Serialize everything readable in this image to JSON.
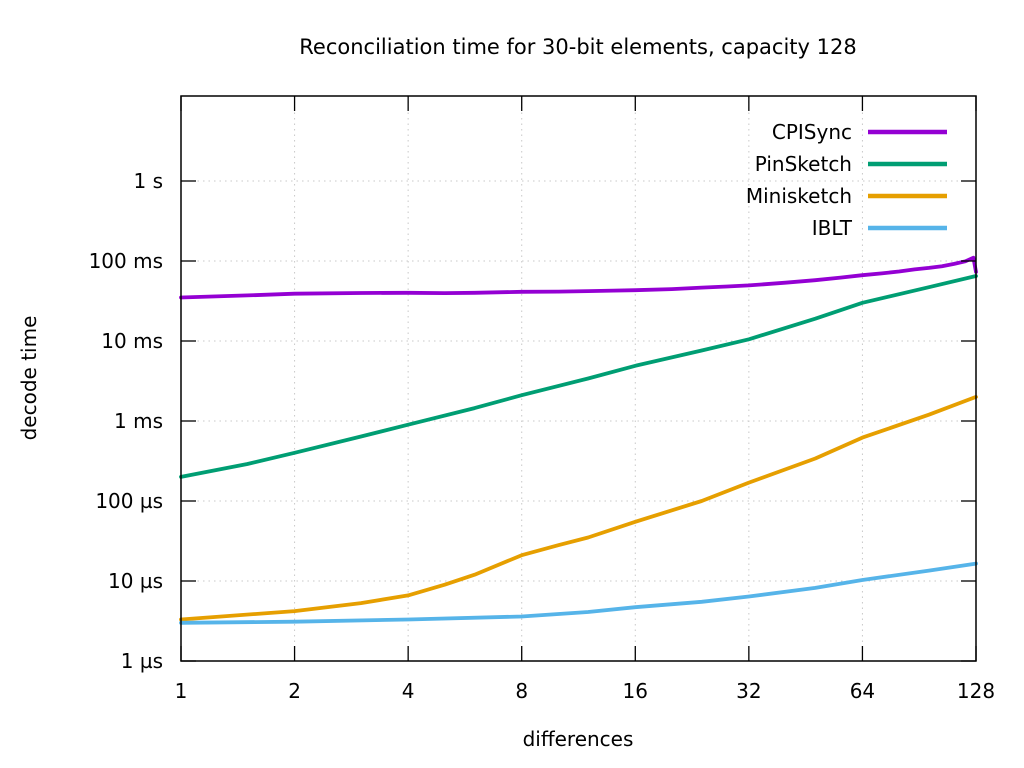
{
  "title": "Reconciliation time for 30-bit elements, capacity 128",
  "chart_data": {
    "type": "line",
    "title": "Reconciliation time for 30-bit elements, capacity 128",
    "xlabel": "differences",
    "ylabel": "decode time",
    "x_scale": "log2",
    "y_scale": "log10",
    "x_range": [
      1,
      128
    ],
    "y_range_label": [
      "1 µs",
      "above 1 s"
    ],
    "grid": true,
    "legend_position": "top-right-inside",
    "x_ticks": [
      {
        "v": 1,
        "label": "1"
      },
      {
        "v": 2,
        "label": "2"
      },
      {
        "v": 4,
        "label": "4"
      },
      {
        "v": 8,
        "label": "8"
      },
      {
        "v": 16,
        "label": "16"
      },
      {
        "v": 32,
        "label": "32"
      },
      {
        "v": 64,
        "label": "64"
      },
      {
        "v": 128,
        "label": "128"
      }
    ],
    "y_ticks": [
      {
        "us": 1,
        "label": "1 µs"
      },
      {
        "us": 10,
        "label": "10 µs"
      },
      {
        "us": 100,
        "label": "100 µs"
      },
      {
        "us": 1000,
        "label": "1 ms"
      },
      {
        "us": 10000,
        "label": "10 ms"
      },
      {
        "us": 100000,
        "label": "100 ms"
      },
      {
        "us": 1000000,
        "label": "1 s"
      }
    ],
    "series": [
      {
        "name": "CPISync",
        "color": "#9400d3",
        "units": "microseconds",
        "points": [
          [
            1,
            35000
          ],
          [
            1.5,
            37200
          ],
          [
            2,
            39000
          ],
          [
            3,
            39800
          ],
          [
            4,
            40000
          ],
          [
            5,
            39700
          ],
          [
            6,
            40000
          ],
          [
            8,
            41200
          ],
          [
            10,
            41500
          ],
          [
            12,
            42000
          ],
          [
            14,
            42600
          ],
          [
            16,
            43200
          ],
          [
            20,
            44600
          ],
          [
            24,
            46500
          ],
          [
            28,
            48000
          ],
          [
            32,
            49500
          ],
          [
            40,
            53500
          ],
          [
            48,
            57500
          ],
          [
            56,
            62000
          ],
          [
            64,
            66500
          ],
          [
            72,
            70000
          ],
          [
            80,
            74000
          ],
          [
            88,
            78500
          ],
          [
            96,
            82000
          ],
          [
            104,
            86000
          ],
          [
            112,
            92000
          ],
          [
            120,
            99000
          ],
          [
            126,
            110000
          ],
          [
            128,
            73000
          ]
        ]
      },
      {
        "name": "PinSketch",
        "color": "#009e73",
        "units": "microseconds",
        "points": [
          [
            1,
            200
          ],
          [
            1.5,
            290
          ],
          [
            2,
            400
          ],
          [
            3,
            640
          ],
          [
            4,
            900
          ],
          [
            6,
            1450
          ],
          [
            8,
            2100
          ],
          [
            12,
            3400
          ],
          [
            16,
            4900
          ],
          [
            24,
            7600
          ],
          [
            32,
            10500
          ],
          [
            48,
            19000
          ],
          [
            64,
            30000
          ],
          [
            96,
            47000
          ],
          [
            128,
            65000
          ]
        ]
      },
      {
        "name": "Minisketch",
        "color": "#e69f00",
        "units": "microseconds",
        "points": [
          [
            1,
            3.3
          ],
          [
            2,
            4.2
          ],
          [
            3,
            5.3
          ],
          [
            4,
            6.6
          ],
          [
            5,
            9
          ],
          [
            6,
            12
          ],
          [
            8,
            21
          ],
          [
            10,
            28
          ],
          [
            12,
            35
          ],
          [
            16,
            55
          ],
          [
            24,
            100
          ],
          [
            32,
            170
          ],
          [
            48,
            340
          ],
          [
            64,
            620
          ],
          [
            96,
            1200
          ],
          [
            128,
            2000
          ]
        ]
      },
      {
        "name": "IBLT",
        "color": "#56b4e9",
        "units": "microseconds",
        "points": [
          [
            1,
            3.0
          ],
          [
            2,
            3.1
          ],
          [
            4,
            3.3
          ],
          [
            8,
            3.6
          ],
          [
            12,
            4.1
          ],
          [
            16,
            4.7
          ],
          [
            24,
            5.5
          ],
          [
            32,
            6.4
          ],
          [
            48,
            8.2
          ],
          [
            64,
            10.3
          ],
          [
            96,
            13.5
          ],
          [
            128,
            16.5
          ]
        ]
      }
    ],
    "style": {
      "frame_color": "#000000",
      "grid_color": "#c8c8c8",
      "background": "#ffffff",
      "line_width": 3.8
    }
  }
}
